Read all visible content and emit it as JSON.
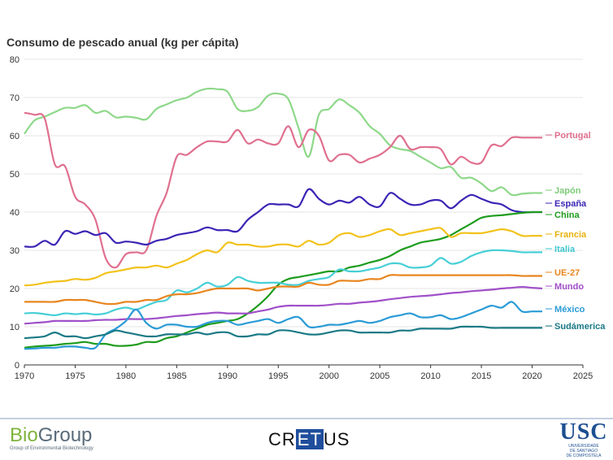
{
  "chart_data": {
    "type": "line",
    "title": "Consumo de pescado anual (kg per cápita)",
    "xlim": [
      1970,
      2025
    ],
    "ylim": [
      0,
      80
    ],
    "xticks": [
      1970,
      1975,
      1980,
      1985,
      1990,
      1995,
      2000,
      2005,
      2010,
      2015,
      2020,
      2025
    ],
    "yticks": [
      0,
      10,
      20,
      30,
      40,
      50,
      60,
      70,
      80
    ],
    "grid": "horizontal",
    "legend": "direct labels at line ends",
    "series": [
      {
        "name": "Japón",
        "color": "#8ed88a",
        "label_color": "#7ccc77",
        "x": [
          1970,
          1971,
          1972,
          1973,
          1974,
          1975,
          1976,
          1977,
          1978,
          1979,
          1980,
          1981,
          1982,
          1983,
          1984,
          1985,
          1986,
          1987,
          1988,
          1989,
          1990,
          1991,
          1992,
          1993,
          1994,
          1995,
          1996,
          1997,
          1998,
          1999,
          2000,
          2001,
          2002,
          2003,
          2004,
          2005,
          2006,
          2007,
          2008,
          2009,
          2010,
          2011,
          2012,
          2013,
          2014,
          2015,
          2016,
          2017,
          2018,
          2019,
          2020,
          2021
        ],
        "y": [
          60.5,
          64,
          65,
          66.2,
          67.3,
          67.3,
          68,
          66,
          66.5,
          64.8,
          65,
          64.7,
          64.3,
          67,
          68.2,
          69.3,
          70,
          71.5,
          72.3,
          72.2,
          71.5,
          67,
          66.5,
          67.5,
          70.5,
          71,
          69.5,
          62,
          54.5,
          65.5,
          67,
          69.5,
          68,
          66,
          62.5,
          60.5,
          57.5,
          56.5,
          56,
          54.5,
          53,
          51.5,
          51.8,
          49,
          49,
          47.5,
          45.5,
          46.5,
          44.5,
          44.8,
          45,
          45
        ]
      },
      {
        "name": "Portugal",
        "color": "#e0708f",
        "label_color": "#e0708f",
        "x": [
          1970,
          1971,
          1972,
          1973,
          1974,
          1975,
          1976,
          1977,
          1978,
          1979,
          1980,
          1981,
          1982,
          1983,
          1984,
          1985,
          1986,
          1987,
          1988,
          1989,
          1990,
          1991,
          1992,
          1993,
          1994,
          1995,
          1996,
          1997,
          1998,
          1999,
          2000,
          2001,
          2002,
          2003,
          2004,
          2005,
          2006,
          2007,
          2008,
          2009,
          2010,
          2011,
          2012,
          2013,
          2014,
          2015,
          2016,
          2017,
          2018,
          2019,
          2020,
          2021
        ],
        "y": [
          66,
          65.5,
          64.5,
          52.5,
          52,
          44,
          42,
          38,
          28,
          25.5,
          29,
          29.5,
          30,
          39,
          45,
          54.5,
          55,
          57,
          58.5,
          58.5,
          58.5,
          61.5,
          58,
          59,
          58,
          58,
          62.5,
          57,
          61.5,
          60,
          53.5,
          55,
          55,
          53,
          54,
          55,
          57,
          60,
          56.5,
          57,
          57,
          56.5,
          52.5,
          54.5,
          53,
          53,
          57.5,
          57.3,
          59.5,
          59.5,
          59.5,
          59.5
        ]
      },
      {
        "name": "España",
        "color": "#3a25b5",
        "label_color": "#3a25b5",
        "x": [
          1970,
          1971,
          1972,
          1973,
          1974,
          1975,
          1976,
          1977,
          1978,
          1979,
          1980,
          1981,
          1982,
          1983,
          1984,
          1985,
          1986,
          1987,
          1988,
          1989,
          1990,
          1991,
          1992,
          1993,
          1994,
          1995,
          1996,
          1997,
          1998,
          1999,
          2000,
          2001,
          2002,
          2003,
          2004,
          2005,
          2006,
          2007,
          2008,
          2009,
          2010,
          2011,
          2012,
          2013,
          2014,
          2015,
          2016,
          2017,
          2018,
          2019,
          2020,
          2021
        ],
        "y": [
          31,
          31,
          32.5,
          31.5,
          35,
          34.3,
          35,
          34,
          34.5,
          32,
          32.3,
          32,
          31.5,
          32.5,
          33,
          34,
          34.5,
          35,
          36,
          35.3,
          35.3,
          35,
          38,
          40,
          42,
          42,
          42,
          41.5,
          46,
          43.5,
          42,
          43,
          42.5,
          44,
          42,
          41.5,
          45,
          43.5,
          42,
          42,
          43,
          43,
          41,
          43,
          44.5,
          43.5,
          42.5,
          42,
          40.5,
          40,
          40,
          40
        ]
      },
      {
        "name": "China",
        "color": "#1e9c1e",
        "label_color": "#1e9c1e",
        "x": [
          1970,
          1971,
          1972,
          1973,
          1974,
          1975,
          1976,
          1977,
          1978,
          1979,
          1980,
          1981,
          1982,
          1983,
          1984,
          1985,
          1986,
          1987,
          1988,
          1989,
          1990,
          1991,
          1992,
          1993,
          1994,
          1995,
          1996,
          1997,
          1998,
          1999,
          2000,
          2001,
          2002,
          2003,
          2004,
          2005,
          2006,
          2007,
          2008,
          2009,
          2010,
          2011,
          2012,
          2013,
          2014,
          2015,
          2016,
          2017,
          2018,
          2019,
          2020,
          2021
        ],
        "y": [
          4.5,
          4.8,
          5,
          5.2,
          5.5,
          5.7,
          6,
          5.5,
          5.5,
          5,
          5,
          5.3,
          6,
          6,
          7,
          7.5,
          8.5,
          9.5,
          10.5,
          11,
          11.5,
          12,
          13.5,
          15.5,
          18,
          21,
          22.5,
          23,
          23.5,
          24,
          24.5,
          24.5,
          25.5,
          26,
          26.8,
          27.5,
          28.5,
          30,
          31,
          32,
          32.5,
          33,
          34,
          35.5,
          37,
          38.5,
          39,
          39.2,
          39.5,
          39.8,
          40,
          40
        ]
      },
      {
        "name": "Francia",
        "color": "#f2c21a",
        "label_color": "#e8b20c",
        "x": [
          1970,
          1971,
          1972,
          1973,
          1974,
          1975,
          1976,
          1977,
          1978,
          1979,
          1980,
          1981,
          1982,
          1983,
          1984,
          1985,
          1986,
          1987,
          1988,
          1989,
          1990,
          1991,
          1992,
          1993,
          1994,
          1995,
          1996,
          1997,
          1998,
          1999,
          2000,
          2001,
          2002,
          2003,
          2004,
          2005,
          2006,
          2007,
          2008,
          2009,
          2010,
          2011,
          2012,
          2013,
          2014,
          2015,
          2016,
          2017,
          2018,
          2019,
          2020,
          2021
        ],
        "y": [
          20.8,
          21,
          21.5,
          21.8,
          22,
          22.5,
          22.3,
          22.8,
          24,
          24.5,
          25,
          25.5,
          25.5,
          26,
          25.5,
          26.5,
          27.5,
          29,
          30,
          29.5,
          32,
          31.5,
          31.5,
          31,
          31,
          31.5,
          31.5,
          31,
          32.5,
          31.5,
          32,
          34,
          34.5,
          33.5,
          34,
          35,
          35.5,
          34,
          34.5,
          35,
          35.5,
          35.8,
          33.5,
          34.5,
          34.5,
          34.5,
          35,
          35.5,
          35,
          33.8,
          33.8,
          33.8
        ]
      },
      {
        "name": "Italia",
        "color": "#46cfd6",
        "label_color": "#3ec7ce",
        "x": [
          1970,
          1971,
          1972,
          1973,
          1974,
          1975,
          1976,
          1977,
          1978,
          1979,
          1980,
          1981,
          1982,
          1983,
          1984,
          1985,
          1986,
          1987,
          1988,
          1989,
          1990,
          1991,
          1992,
          1993,
          1994,
          1995,
          1996,
          1997,
          1998,
          1999,
          2000,
          2001,
          2002,
          2003,
          2004,
          2005,
          2006,
          2007,
          2008,
          2009,
          2010,
          2011,
          2012,
          2013,
          2014,
          2015,
          2016,
          2017,
          2018,
          2019,
          2020,
          2021
        ],
        "y": [
          13.5,
          13.6,
          13.3,
          13,
          13.5,
          13.3,
          13.5,
          13.2,
          13.5,
          14.5,
          15,
          14.5,
          15.5,
          16.5,
          17,
          19.5,
          19,
          20,
          21.5,
          20.5,
          21,
          23,
          22,
          21.5,
          21.5,
          21.5,
          21,
          21,
          22,
          22.5,
          23,
          25,
          24.5,
          24.5,
          25,
          25.5,
          26.5,
          26.5,
          25.5,
          25.5,
          26,
          28,
          26.5,
          27,
          28.5,
          29.5,
          30,
          30,
          29.8,
          29.5,
          29.5,
          29.5
        ]
      },
      {
        "name": "UE-27",
        "color": "#e8851e",
        "label_color": "#e8851e",
        "x": [
          1970,
          1971,
          1972,
          1973,
          1974,
          1975,
          1976,
          1977,
          1978,
          1979,
          1980,
          1981,
          1982,
          1983,
          1984,
          1985,
          1986,
          1987,
          1988,
          1989,
          1990,
          1991,
          1992,
          1993,
          1994,
          1995,
          1996,
          1997,
          1998,
          1999,
          2000,
          2001,
          2002,
          2003,
          2004,
          2005,
          2006,
          2007,
          2008,
          2009,
          2010,
          2011,
          2012,
          2013,
          2014,
          2015,
          2016,
          2017,
          2018,
          2019,
          2020,
          2021
        ],
        "y": [
          16.5,
          16.5,
          16.5,
          16.5,
          17,
          17,
          17,
          16.5,
          16,
          16,
          16.5,
          16.5,
          17,
          17,
          18,
          18.5,
          18.5,
          18.8,
          19.5,
          20,
          20,
          20,
          20,
          19.5,
          20,
          20.5,
          20.5,
          20.5,
          21.5,
          21,
          21,
          22,
          22,
          22,
          22.5,
          22.5,
          23.5,
          23.5,
          23.5,
          23.5,
          23.5,
          23.5,
          23.5,
          23.5,
          23.5,
          23.5,
          23.5,
          23.5,
          23.5,
          23.3,
          23.3,
          23.3
        ]
      },
      {
        "name": "Mundo",
        "color": "#a050c8",
        "label_color": "#a050c8",
        "x": [
          1970,
          1971,
          1972,
          1973,
          1974,
          1975,
          1976,
          1977,
          1978,
          1979,
          1980,
          1981,
          1982,
          1983,
          1984,
          1985,
          1986,
          1987,
          1988,
          1989,
          1990,
          1991,
          1992,
          1993,
          1994,
          1995,
          1996,
          1997,
          1998,
          1999,
          2000,
          2001,
          2002,
          2003,
          2004,
          2005,
          2006,
          2007,
          2008,
          2009,
          2010,
          2011,
          2012,
          2013,
          2014,
          2015,
          2016,
          2017,
          2018,
          2019,
          2020,
          2021
        ],
        "y": [
          10.8,
          11,
          11.2,
          11.5,
          11.5,
          11.5,
          11.5,
          11.7,
          11.8,
          11.8,
          12,
          12,
          12,
          12.2,
          12.5,
          12.8,
          13,
          13.3,
          13.5,
          13.7,
          13.5,
          13.5,
          13.5,
          14,
          14.5,
          15.2,
          15.5,
          15.5,
          15.5,
          15.5,
          15.7,
          16,
          16,
          16.3,
          16.5,
          16.8,
          17.2,
          17.5,
          17.8,
          18,
          18.2,
          18.5,
          18.8,
          19,
          19.3,
          19.5,
          19.7,
          20,
          20.2,
          20.4,
          20.2,
          20
        ]
      },
      {
        "name": "México",
        "color": "#2b9bd6",
        "label_color": "#2b9bd6",
        "x": [
          1970,
          1971,
          1972,
          1973,
          1974,
          1975,
          1976,
          1977,
          1978,
          1979,
          1980,
          1981,
          1982,
          1983,
          1984,
          1985,
          1986,
          1987,
          1988,
          1989,
          1990,
          1991,
          1992,
          1993,
          1994,
          1995,
          1996,
          1997,
          1998,
          1999,
          2000,
          2001,
          2002,
          2003,
          2004,
          2005,
          2006,
          2007,
          2008,
          2009,
          2010,
          2011,
          2012,
          2013,
          2014,
          2015,
          2016,
          2017,
          2018,
          2019,
          2020,
          2021
        ],
        "y": [
          4.2,
          4.3,
          4.5,
          4.5,
          4.8,
          4.8,
          4.5,
          4.5,
          8,
          9.5,
          11.5,
          14.5,
          11,
          9.5,
          10.5,
          10.5,
          10,
          10,
          11,
          11.5,
          11.5,
          10.5,
          11,
          11.5,
          12,
          11,
          12,
          12.5,
          10,
          10,
          10.5,
          10.5,
          11,
          11.5,
          11,
          11.5,
          12.5,
          13,
          13.5,
          12.5,
          12.5,
          13,
          12,
          12.5,
          13.5,
          14.5,
          15.5,
          15,
          16.5,
          14,
          14,
          14
        ]
      },
      {
        "name": "Sudámerica",
        "color": "#1a7a86",
        "label_color": "#1a7a86",
        "x": [
          1970,
          1971,
          1972,
          1973,
          1974,
          1975,
          1976,
          1977,
          1978,
          1979,
          1980,
          1981,
          1982,
          1983,
          1984,
          1985,
          1986,
          1987,
          1988,
          1989,
          1990,
          1991,
          1992,
          1993,
          1994,
          1995,
          1996,
          1997,
          1998,
          1999,
          2000,
          2001,
          2002,
          2003,
          2004,
          2005,
          2006,
          2007,
          2008,
          2009,
          2010,
          2011,
          2012,
          2013,
          2014,
          2015,
          2016,
          2017,
          2018,
          2019,
          2020,
          2021
        ],
        "y": [
          7,
          7.2,
          7.5,
          8.5,
          7.5,
          7.5,
          7,
          7.5,
          8,
          9,
          8.5,
          8,
          7.5,
          7.5,
          8,
          8,
          8,
          8.5,
          8,
          8.5,
          8.5,
          7.5,
          7.5,
          8,
          8,
          9,
          9,
          8.5,
          8,
          8,
          8.5,
          9,
          9,
          8.5,
          8.5,
          8.5,
          8.5,
          9,
          9,
          9.5,
          9.5,
          9.5,
          9.5,
          10,
          10,
          10,
          9.7,
          9.7,
          9.7,
          9.7,
          9.7,
          9.7
        ]
      }
    ]
  },
  "footer": {
    "bio_part1": "Bio",
    "bio_part2": "Group",
    "bio_sub": "Group of Environmental Biotechnology",
    "cretus_pre": "CR",
    "cretus_box": "ET",
    "cretus_post": "US",
    "usc": "USC",
    "usc_sub1": "UNIVERSIDADE",
    "usc_sub2": "DE SANTIAGO",
    "usc_sub3": "DE COMPOSTELA"
  }
}
